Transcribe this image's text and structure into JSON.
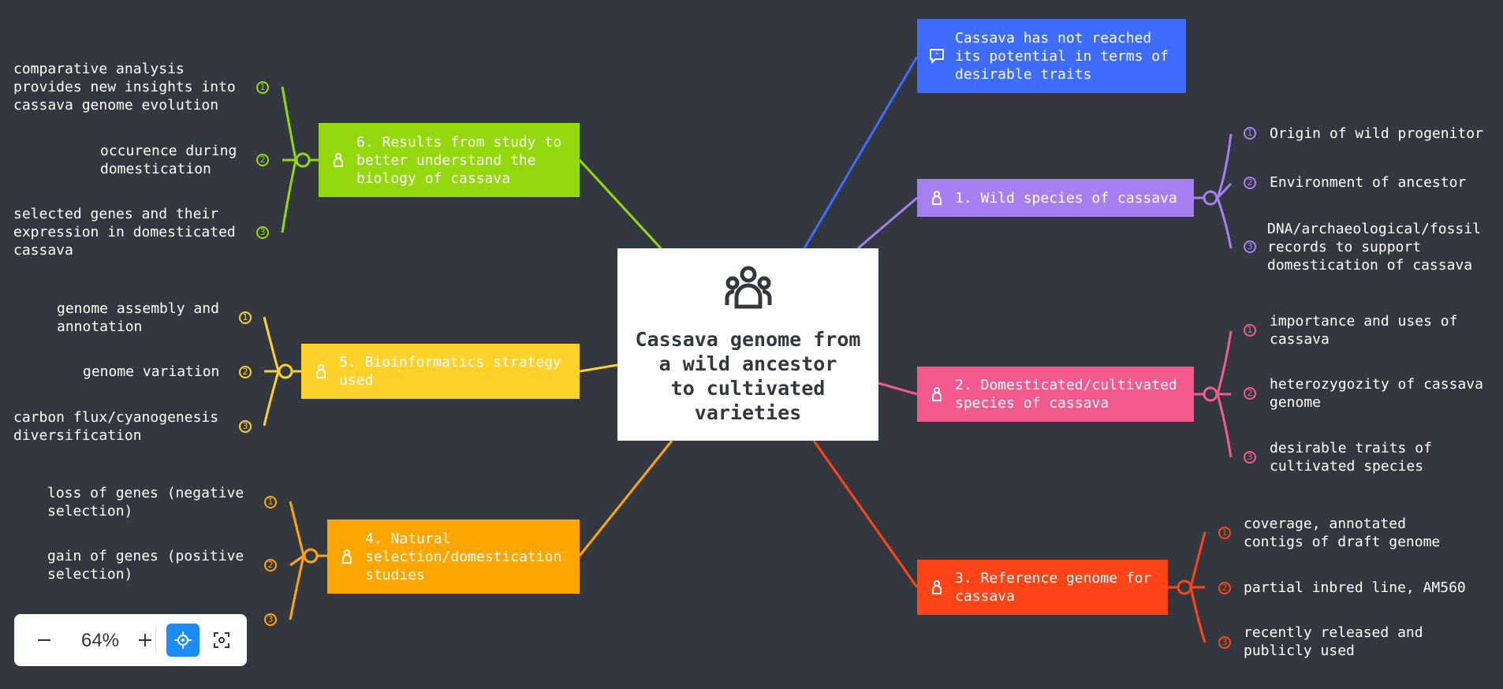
{
  "center": {
    "title": "Cassava genome from\na wild ancestor\nto cultivated\nvarieties",
    "icon": "team-icon"
  },
  "note": {
    "label": "Cassava has not reached its potential in terms of desirable traits",
    "icon": "comment-icon",
    "color": "#3d6cff"
  },
  "branches": [
    {
      "id": "b1",
      "label": "1. Wild species of cassava",
      "color": "#a77ff0",
      "leaves": [
        "Origin of wild progenitor",
        "Environment of ancestor",
        "DNA/archaeological/fossil\nrecords to support\ndomestication of cassava"
      ]
    },
    {
      "id": "b2",
      "label": "2. Domesticated/cultivated species of cassava",
      "color": "#f55a8f",
      "leaves": [
        "importance and uses of\ncassava",
        "heterozygozity of cassava\ngenome",
        "desirable traits of\ncultivated species"
      ]
    },
    {
      "id": "b3",
      "label": "3. Reference genome for cassava",
      "color": "#ff4417",
      "leaves": [
        "coverage, annotated\ncontigs of draft genome",
        "partial inbred line, AM560",
        "recently released and\npublicly used"
      ]
    },
    {
      "id": "b4",
      "label": "4. Natural selection/domestication studies",
      "color": "#ffa600",
      "leaves": [
        "loss of genes (negative\nselection)",
        "gain of genes (positive\nselection)",
        ""
      ]
    },
    {
      "id": "b5",
      "label": "5. Bioinformatics strategy used",
      "color": "#ffd22b",
      "leaves": [
        "genome assembly and\nannotation",
        "genome variation",
        "carbon flux/cyanogenesis\ndiversification"
      ]
    },
    {
      "id": "b6",
      "label": "6. Results from study to better understand the biology of cassava",
      "color": "#93d90d",
      "leaves": [
        "comparative analysis\nprovides new insights into\ncassava genome evolution",
        "occurence during\ndomestication",
        "selected genes and their\nexpression in domesticated\ncassava"
      ]
    }
  ],
  "leaf_numbers": [
    "1",
    "2",
    "3"
  ],
  "toolbar": {
    "zoom": "64%",
    "zoom_out_icon": "minus-icon",
    "zoom_in_icon": "plus-icon",
    "locate_icon": "locate-icon",
    "fit_icon": "fit-screen-icon"
  }
}
